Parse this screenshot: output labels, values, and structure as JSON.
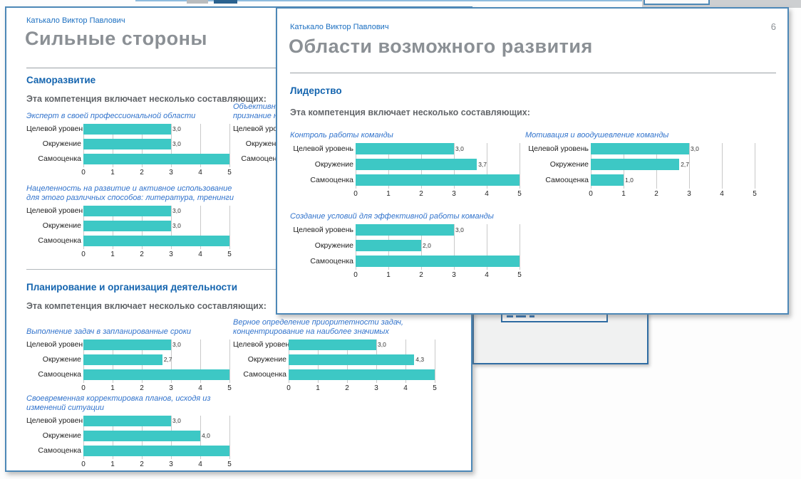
{
  "colors": {
    "bar_teal": "#3dc8c5",
    "page_border_blue": "#4d88b7",
    "link_blue": "#1b6fc1",
    "heading_blue": "#1565af",
    "chart_title_blue": "#3173cc",
    "title_gray": "#8b9095",
    "grid_gray": "#c9c9c9"
  },
  "categories": [
    "Целевой уровень",
    "Окружение",
    "Самооценка"
  ],
  "axis": {
    "min": 0,
    "max": 5,
    "ticks": [
      "0",
      "1",
      "2",
      "3",
      "4",
      "5"
    ]
  },
  "pages": {
    "back": {
      "header_name": "Катькало Виктор Павлович",
      "title": "Сильные стороны",
      "sections": {
        "self_dev": {
          "heading": "Саморазвитие",
          "intro": "Эта компетенция включает несколько составляющих:"
        },
        "planning": {
          "heading": "Планирование и организация деятельности",
          "intro": "Эта компетенция включает несколько составляющих:"
        }
      }
    },
    "front": {
      "header_name": "Катькало Виктор Павлович",
      "page_number": "6",
      "title": "Области возможного развития",
      "sections": {
        "leadership": {
          "heading": "Лидерство",
          "intro": "Эта компетенция включает несколько составляющих:"
        }
      }
    }
  },
  "chart_data": [
    {
      "id": "expert",
      "type": "bar",
      "page": "Сильные стороны",
      "section": "Саморазвитие",
      "title": "Эксперт в своей профессиональной области",
      "categories": [
        "Целевой уровень",
        "Окружение",
        "Самооценка"
      ],
      "values": [
        3.0,
        3.0,
        5.0
      ],
      "value_labels": [
        "3,0",
        "3,0",
        ""
      ],
      "xlim": [
        0,
        5
      ]
    },
    {
      "id": "recognition",
      "type": "bar",
      "page": "Сильные стороны",
      "section": "Саморазвитие",
      "title": "Объективное признание не",
      "categories": [
        "Целевой уровень",
        "Окружение",
        "Самооценка"
      ],
      "values": null,
      "value_labels": null,
      "partially_hidden": true,
      "xlim": [
        0,
        5
      ]
    },
    {
      "id": "development_focus",
      "type": "bar",
      "page": "Сильные стороны",
      "section": "Саморазвитие",
      "title": "Нацеленность на развитие и активное использование для этого различных способов: литература, тренинги",
      "categories": [
        "Целевой уровень",
        "Окружение",
        "Самооценка"
      ],
      "values": [
        3.0,
        3.0,
        5.0
      ],
      "value_labels": [
        "3,0",
        "3,0",
        ""
      ],
      "xlim": [
        0,
        5
      ]
    },
    {
      "id": "deadlines",
      "type": "bar",
      "page": "Сильные стороны",
      "section": "Планирование и организация деятельности",
      "title": "Выполнение задач в запланированные сроки",
      "categories": [
        "Целевой уровень",
        "Окружение",
        "Самооценка"
      ],
      "values": [
        3.0,
        2.7,
        5.0
      ],
      "value_labels": [
        "3,0",
        "2,7",
        ""
      ],
      "xlim": [
        0,
        5
      ]
    },
    {
      "id": "prioritization",
      "type": "bar",
      "page": "Сильные стороны",
      "section": "Планирование и организация деятельности",
      "title": "Верное определение приоритетности задач, концентрирование на наиболее значимых",
      "categories": [
        "Целевой уровень",
        "Окружение",
        "Самооценка"
      ],
      "values": [
        3.0,
        4.3,
        5.0
      ],
      "value_labels": [
        "3,0",
        "4,3",
        ""
      ],
      "xlim": [
        0,
        5
      ]
    },
    {
      "id": "plan_adjust",
      "type": "bar",
      "page": "Сильные стороны",
      "section": "Планирование и организация деятельности",
      "title": "Своевременная корректировка планов, исходя из изменений ситуации",
      "categories": [
        "Целевой уровень",
        "Окружение",
        "Самооценка"
      ],
      "values": [
        3.0,
        4.0,
        5.0
      ],
      "value_labels": [
        "3,0",
        "4,0",
        ""
      ],
      "xlim": [
        0,
        5
      ]
    },
    {
      "id": "team_control",
      "type": "bar",
      "page": "Области возможного развития",
      "section": "Лидерство",
      "title": "Контроль работы команды",
      "categories": [
        "Целевой уровень",
        "Окружение",
        "Самооценка"
      ],
      "values": [
        3.0,
        3.7,
        5.0
      ],
      "value_labels": [
        "3,0",
        "3,7",
        ""
      ],
      "xlim": [
        0,
        5
      ]
    },
    {
      "id": "team_motivation",
      "type": "bar",
      "page": "Области возможного развития",
      "section": "Лидерство",
      "title": "Мотивация и воодушевление команды",
      "categories": [
        "Целевой уровень",
        "Окружение",
        "Самооценка"
      ],
      "values": [
        3.0,
        2.7,
        1.0
      ],
      "value_labels": [
        "3,0",
        "2,7",
        "1,0"
      ],
      "xlim": [
        0,
        5
      ]
    },
    {
      "id": "team_conditions",
      "type": "bar",
      "page": "Области возможного развития",
      "section": "Лидерство",
      "title": "Создание условий для эффективной работы команды",
      "categories": [
        "Целевой уровень",
        "Окружение",
        "Самооценка"
      ],
      "values": [
        3.0,
        2.0,
        5.0
      ],
      "value_labels": [
        "3,0",
        "2,0",
        ""
      ],
      "xlim": [
        0,
        5
      ]
    }
  ]
}
